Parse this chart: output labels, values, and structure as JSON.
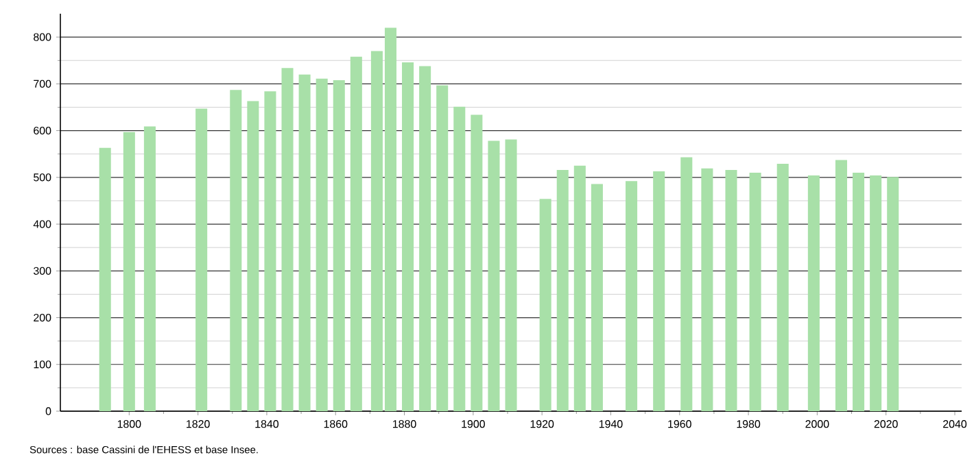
{
  "chart_data": {
    "type": "bar",
    "x": [
      1793,
      1800,
      1806,
      1821,
      1831,
      1836,
      1841,
      1846,
      1851,
      1856,
      1861,
      1866,
      1872,
      1876,
      1881,
      1886,
      1891,
      1896,
      1901,
      1906,
      1911,
      1921,
      1926,
      1931,
      1936,
      1946,
      1954,
      1962,
      1968,
      1975,
      1982,
      1990,
      1999,
      2007,
      2012,
      2017,
      2022
    ],
    "values": [
      563,
      597,
      609,
      647,
      687,
      663,
      684,
      734,
      720,
      711,
      708,
      758,
      770,
      820,
      746,
      738,
      697,
      651,
      634,
      578,
      581,
      454,
      516,
      525,
      486,
      492,
      513,
      543,
      519,
      516,
      510,
      529,
      504,
      537,
      510,
      504,
      501
    ],
    "color": "#a8e0a8",
    "xlim": [
      1780,
      2042
    ],
    "ylim": [
      0,
      850
    ],
    "xticks": [
      1800,
      1820,
      1840,
      1860,
      1880,
      1900,
      1920,
      1940,
      1960,
      1980,
      2000,
      2020,
      2040
    ],
    "yticks": [
      0,
      100,
      200,
      300,
      400,
      500,
      600,
      700,
      800
    ],
    "grid": "y",
    "annotations": [
      "Sources : base Cassini de l'EHESS et base Insee."
    ]
  }
}
